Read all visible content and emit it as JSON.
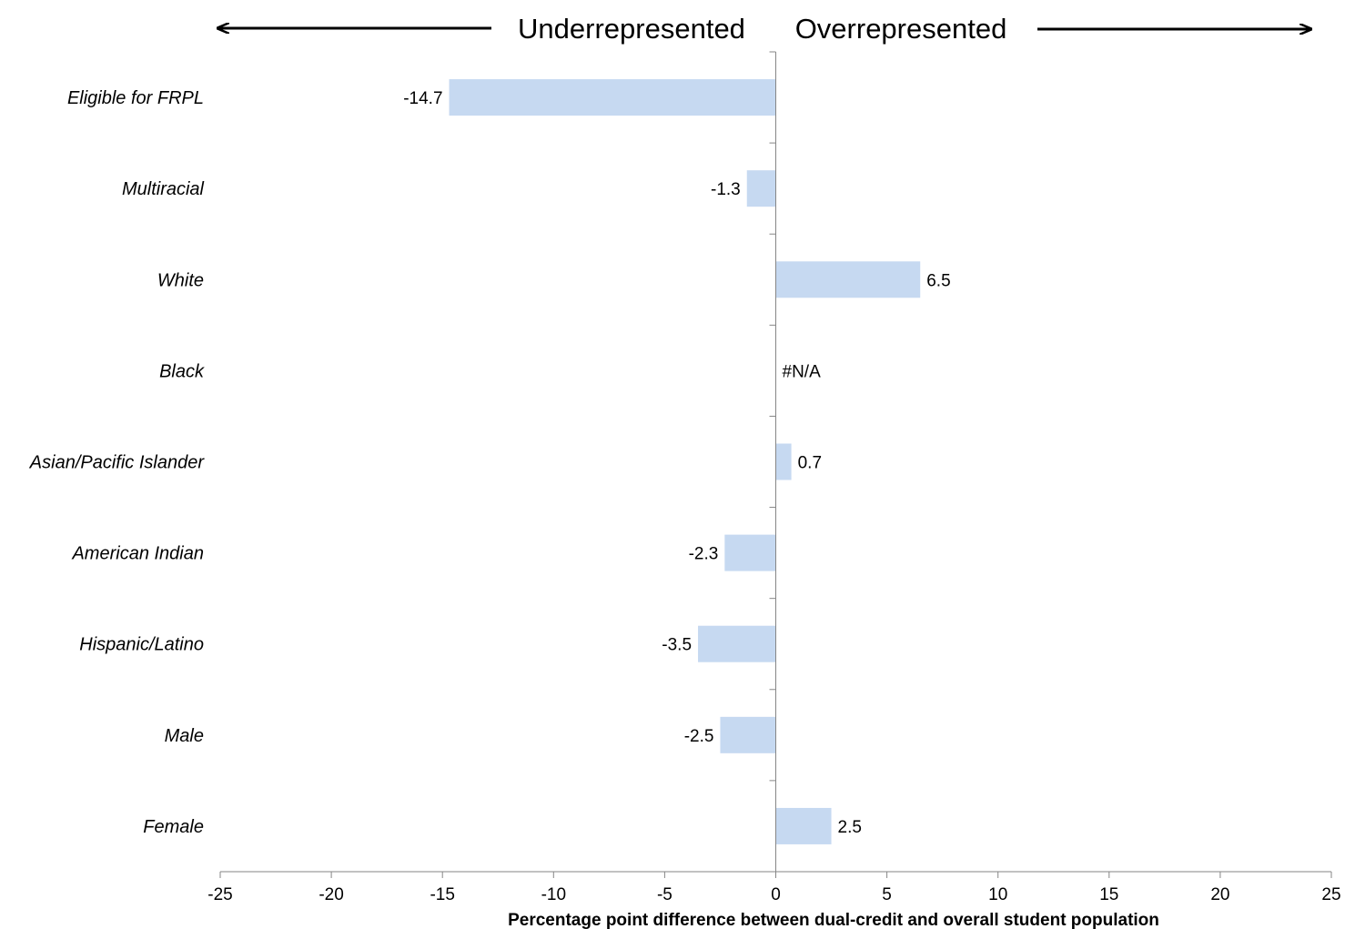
{
  "chart_data": {
    "type": "bar",
    "orientation": "horizontal",
    "categories": [
      "Eligible for FRPL",
      "Multiracial",
      "White",
      "Black",
      "Asian/Pacific Islander",
      "American Indian",
      "Hispanic/Latino",
      "Male",
      "Female"
    ],
    "values": [
      -14.7,
      -1.3,
      6.5,
      null,
      0.7,
      -2.3,
      -3.5,
      -2.5,
      2.5
    ],
    "value_labels": [
      "-14.7",
      "-1.3",
      "6.5",
      "#N/A",
      "0.7",
      "-2.3",
      "-3.5",
      "-2.5",
      "2.5"
    ],
    "xlim": [
      -25,
      25
    ],
    "xticks": [
      -25,
      -20,
      -15,
      -10,
      -5,
      0,
      5,
      10,
      15,
      20,
      25
    ],
    "xlabel": "Percentage point difference between dual-credit and overall student population",
    "ylabel": "",
    "grid": false,
    "header": {
      "left": "Underrepresented",
      "right": "Overrepresented"
    },
    "colors": {
      "bar": "#c6d9f1",
      "axis": "#868686",
      "text": "#000000"
    }
  }
}
